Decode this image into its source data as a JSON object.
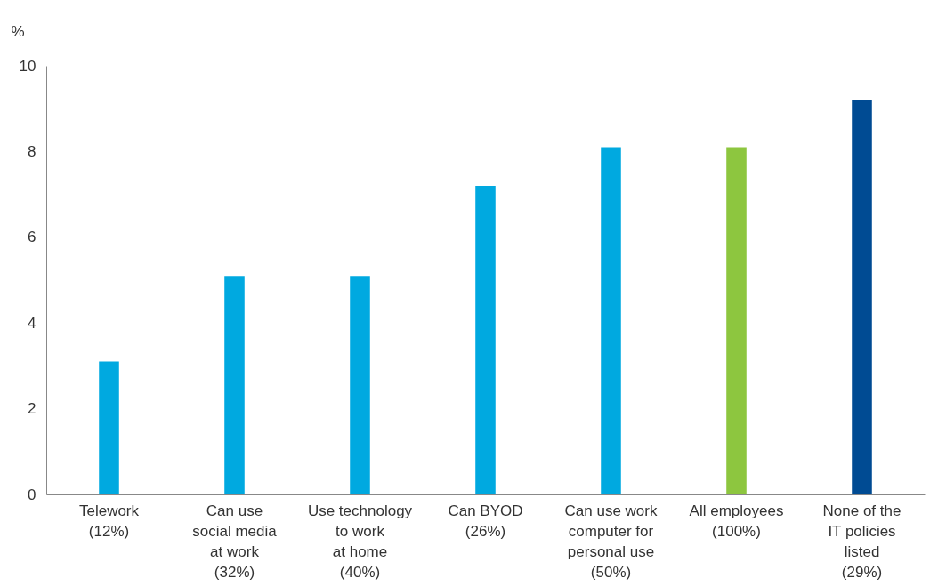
{
  "chart_data": {
    "type": "bar",
    "ylabel": "%",
    "categories": [
      "Telework\n(12%)",
      "Can use\nsocial media\nat work\n(32%)",
      "Use technology\nto work\nat home\n(40%)",
      "Can BYOD\n(26%)",
      "Can use work\ncomputer for\npersonal use\n(50%)",
      "All employees\n(100%)",
      "None of the\nIT policies\nlisted\n(29%)"
    ],
    "values": [
      3.1,
      5.1,
      5.1,
      7.2,
      8.1,
      8.1,
      9.2
    ],
    "colors": [
      "#00a9e0",
      "#00a9e0",
      "#00a9e0",
      "#00a9e0",
      "#00a9e0",
      "#8dc63f",
      "#004b93"
    ],
    "ylim": [
      0,
      10
    ],
    "yticks": [
      0,
      2,
      4,
      6,
      8,
      10
    ],
    "grid": false,
    "legend": false
  }
}
